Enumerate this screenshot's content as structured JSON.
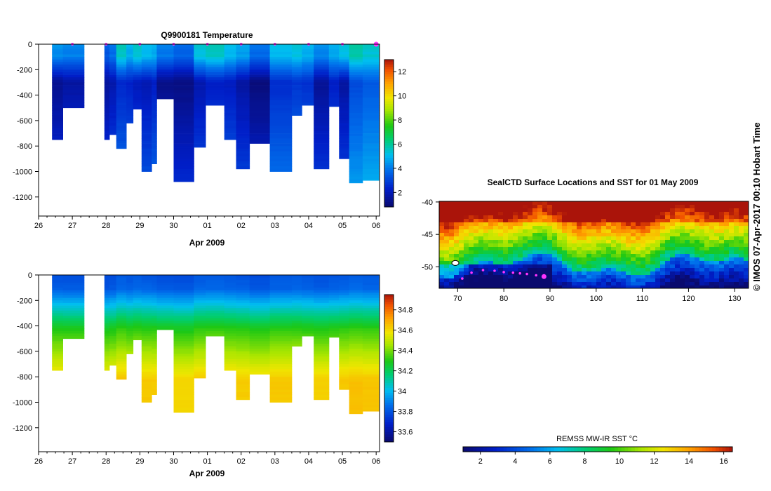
{
  "title_temp": "Q9900181  Temperature",
  "credit": "© IMOS 07-Apr-2017 00:10 Hobart Time",
  "map_title": "SealCTD Surface Locations and SST for 01 May 2009",
  "sst_label": "REMSS MW-IR SST °C",
  "chart_data": [
    {
      "type": "heatmap",
      "name": "temperature-section",
      "title": "Q9900181  Temperature",
      "xlabel": "Apr 2009",
      "ylabel": "",
      "x_ticks": [
        "26",
        "27",
        "28",
        "29",
        "30",
        "01",
        "02",
        "03",
        "04",
        "05",
        "06"
      ],
      "x_range": [
        26,
        36.1
      ],
      "y_ticks": [
        "0",
        "-200",
        "-400",
        "-600",
        "-800",
        "-1000",
        "-1200"
      ],
      "y_range": [
        -1350,
        0
      ],
      "colorbar_ticks": [
        "2",
        "4",
        "6",
        "8",
        "10",
        "12"
      ],
      "colorbar_range": [
        0.8,
        13
      ],
      "profile_markers_day": [
        27,
        28,
        29,
        30,
        31,
        32,
        33,
        34,
        35,
        36
      ],
      "profiles": [
        {
          "x0": 26.4,
          "x1": 26.72,
          "depth": 750,
          "surface": 4.5,
          "min": 1.3
        },
        {
          "x0": 26.72,
          "x1": 27.35,
          "depth": 500,
          "surface": 4.3,
          "min": 1.6
        },
        {
          "x0": 27.95,
          "x1": 28.1,
          "depth": 750,
          "surface": 3.6,
          "min": 1.5
        },
        {
          "x0": 28.1,
          "x1": 28.3,
          "depth": 710,
          "surface": 4.0,
          "min": 1.8
        },
        {
          "x0": 28.3,
          "x1": 28.6,
          "depth": 820,
          "surface": 5.8,
          "min": 2.4
        },
        {
          "x0": 28.6,
          "x1": 28.8,
          "depth": 620,
          "surface": 5.0,
          "min": 2.3
        },
        {
          "x0": 28.8,
          "x1": 29.05,
          "depth": 510,
          "surface": 5.6,
          "min": 2.0
        },
        {
          "x0": 29.05,
          "x1": 29.35,
          "depth": 1000,
          "surface": 5.2,
          "min": 1.9
        },
        {
          "x0": 29.35,
          "x1": 29.5,
          "depth": 940,
          "surface": 5.0,
          "min": 2.2
        },
        {
          "x0": 29.5,
          "x1": 30.0,
          "depth": 430,
          "surface": 4.2,
          "min": 1.2
        },
        {
          "x0": 30.0,
          "x1": 30.6,
          "depth": 1080,
          "surface": 3.8,
          "min": 1.1
        },
        {
          "x0": 30.6,
          "x1": 30.95,
          "depth": 810,
          "surface": 5.5,
          "min": 1.8
        },
        {
          "x0": 30.95,
          "x1": 31.5,
          "depth": 480,
          "surface": 5.8,
          "min": 2.2
        },
        {
          "x0": 31.5,
          "x1": 31.85,
          "depth": 750,
          "surface": 5.2,
          "min": 2.1
        },
        {
          "x0": 31.85,
          "x1": 32.25,
          "depth": 980,
          "surface": 4.8,
          "min": 1.6
        },
        {
          "x0": 32.25,
          "x1": 32.85,
          "depth": 780,
          "surface": 4.0,
          "min": 1.0
        },
        {
          "x0": 32.85,
          "x1": 33.5,
          "depth": 1000,
          "surface": 5.2,
          "min": 2.5
        },
        {
          "x0": 33.5,
          "x1": 33.8,
          "depth": 560,
          "surface": 5.4,
          "min": 2.7
        },
        {
          "x0": 33.8,
          "x1": 34.15,
          "depth": 480,
          "surface": 5.0,
          "min": 2.6
        },
        {
          "x0": 34.15,
          "x1": 34.6,
          "depth": 980,
          "surface": 4.4,
          "min": 1.4
        },
        {
          "x0": 34.6,
          "x1": 34.9,
          "depth": 490,
          "surface": 4.9,
          "min": 2.2
        },
        {
          "x0": 34.9,
          "x1": 35.2,
          "depth": 900,
          "surface": 5.4,
          "min": 1.6
        },
        {
          "x0": 35.2,
          "x1": 35.6,
          "depth": 1090,
          "surface": 6.0,
          "min": 3.1
        },
        {
          "x0": 35.6,
          "x1": 36.08,
          "depth": 1070,
          "surface": 5.6,
          "min": 3.4
        }
      ]
    },
    {
      "type": "heatmap",
      "name": "salinity-section",
      "title": "",
      "xlabel": "Apr 2009",
      "ylabel": "",
      "x_ticks": [
        "26",
        "27",
        "28",
        "29",
        "30",
        "01",
        "02",
        "03",
        "04",
        "05",
        "06"
      ],
      "x_range": [
        26,
        36.1
      ],
      "y_ticks": [
        "0",
        "-200",
        "-400",
        "-600",
        "-800",
        "-1000",
        "-1200"
      ],
      "y_range": [
        -1350,
        0
      ],
      "colorbar_ticks": [
        "33.6",
        "33.8",
        "34",
        "34.2",
        "34.4",
        "34.6",
        "34.8"
      ],
      "colorbar_range": [
        33.5,
        34.95
      ],
      "profiles_same_as": "temperature-section"
    },
    {
      "type": "heatmap",
      "name": "sst-map",
      "title": "SealCTD Surface Locations and SST for 01 May 2009",
      "xlabel": "",
      "ylabel": "",
      "x_ticks": [
        "70",
        "80",
        "90",
        "100",
        "110",
        "120",
        "130"
      ],
      "x_range": [
        66,
        133
      ],
      "y_ticks": [
        "-40",
        "-45",
        "-50"
      ],
      "y_range": [
        -53.3,
        -39.9
      ],
      "colorbar_label": "REMSS MW-IR SST °C",
      "colorbar_ticks": [
        "2",
        "4",
        "6",
        "8",
        "10",
        "12",
        "14",
        "16"
      ],
      "colorbar_range": [
        1,
        16.5
      ],
      "track_lon": [
        71.0,
        73.0,
        75.5,
        78.0,
        80.0,
        82.0,
        83.5,
        85.0,
        87.0,
        88.7
      ],
      "track_lat": [
        -51.8,
        -50.9,
        -50.5,
        -50.6,
        -50.8,
        -50.9,
        -51.0,
        -51.1,
        -51.3,
        -51.5
      ]
    }
  ]
}
